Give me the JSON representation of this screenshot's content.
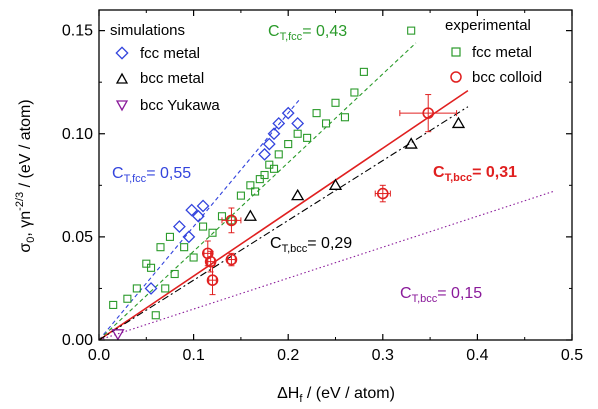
{
  "chart_data": {
    "type": "scatter",
    "xlabel": {
      "main": "ΔH",
      "sub": "f",
      "rest": " / (eV / atom)"
    },
    "ylabel": {
      "a": "σ",
      "a_sub": "0",
      "b": ", γn",
      "b_sup": "-2/3",
      "c": " / (eV / atom)"
    },
    "xlim": [
      0,
      0.5
    ],
    "ylim": [
      0,
      0.16
    ],
    "xticks": [
      0.0,
      0.1,
      0.2,
      0.3,
      0.4,
      0.5
    ],
    "xtick_labels": [
      "0.0",
      "0.1",
      "0.2",
      "0.3",
      "0.4",
      "0.5"
    ],
    "yticks": [
      0.0,
      0.05,
      0.1,
      0.15
    ],
    "ytick_labels": [
      "0.00",
      "0.05",
      "0.10",
      "0.15"
    ],
    "grid": false,
    "legend": {
      "sim_title": "simulations",
      "exp_title": "experimental",
      "entries": {
        "fcc_metal_sim": "fcc metal",
        "bcc_metal_sim": "bcc metal",
        "bcc_yukawa": "bcc Yukawa",
        "fcc_metal_exp": "fcc metal",
        "bcc_colloid": "bcc colloid"
      }
    },
    "colors": {
      "fcc_sim": "#3344dd",
      "bcc_sim": "#000000",
      "yukawa": "#8a1a9a",
      "fcc_exp": "#2a9a2a",
      "colloid": "#e02020"
    },
    "series": {
      "fcc_metal_sim": {
        "marker": "diamond",
        "x": [
          0.055,
          0.085,
          0.095,
          0.098,
          0.105,
          0.11,
          0.175,
          0.18,
          0.185,
          0.19,
          0.2,
          0.21
        ],
        "y": [
          0.025,
          0.055,
          0.05,
          0.063,
          0.06,
          0.065,
          0.09,
          0.095,
          0.1,
          0.105,
          0.11,
          0.105
        ]
      },
      "bcc_metal_sim": {
        "marker": "triangle",
        "x": [
          0.16,
          0.21,
          0.25,
          0.33,
          0.38
        ],
        "y": [
          0.06,
          0.07,
          0.075,
          0.095,
          0.105
        ]
      },
      "bcc_yukawa": {
        "marker": "triangle-down",
        "x": [
          0.02
        ],
        "y": [
          0.003
        ]
      },
      "fcc_metal_exp": {
        "marker": "square",
        "x": [
          0.015,
          0.03,
          0.04,
          0.05,
          0.055,
          0.06,
          0.065,
          0.07,
          0.075,
          0.08,
          0.09,
          0.1,
          0.11,
          0.12,
          0.13,
          0.14,
          0.15,
          0.16,
          0.165,
          0.17,
          0.175,
          0.18,
          0.185,
          0.19,
          0.2,
          0.21,
          0.22,
          0.23,
          0.24,
          0.25,
          0.26,
          0.27,
          0.28,
          0.33
        ],
        "y": [
          0.017,
          0.02,
          0.025,
          0.037,
          0.035,
          0.012,
          0.045,
          0.025,
          0.05,
          0.032,
          0.045,
          0.04,
          0.055,
          0.052,
          0.06,
          0.058,
          0.07,
          0.075,
          0.072,
          0.078,
          0.08,
          0.085,
          0.083,
          0.09,
          0.095,
          0.1,
          0.098,
          0.11,
          0.105,
          0.115,
          0.108,
          0.12,
          0.13,
          0.15
        ]
      },
      "bcc_colloid": {
        "marker": "circle",
        "x": [
          0.115,
          0.118,
          0.12,
          0.14,
          0.14,
          0.3,
          0.348
        ],
        "y": [
          0.042,
          0.038,
          0.029,
          0.058,
          0.039,
          0.071,
          0.11
        ],
        "xerr": [
          0.004,
          0.004,
          0.004,
          0.01,
          0.004,
          0.008,
          0.03
        ],
        "yerr": [
          0.006,
          0.005,
          0.007,
          0.006,
          0.003,
          0.004,
          0.009
        ]
      }
    },
    "fits": {
      "fcc_sim": {
        "slope": 0.55,
        "x_end": 0.213,
        "style": "dashed",
        "label": "C",
        "label_sub": "T,fcc",
        "label_val": "= 0,55"
      },
      "fcc_exp": {
        "slope": 0.43,
        "x_end": 0.335,
        "style": "dashed",
        "label": "C",
        "label_sub": "T,fcc",
        "label_val": "= 0,43"
      },
      "bcc_colloid": {
        "slope": 0.31,
        "x_end": 0.39,
        "style": "solid",
        "label": "C",
        "label_sub": "T,bcc",
        "label_val": "= 0,31"
      },
      "bcc_sim": {
        "slope": 0.29,
        "x_end": 0.39,
        "style": "dashdot",
        "label": "C",
        "label_sub": "T,bcc",
        "label_val": "= 0,29"
      },
      "yukawa": {
        "slope": 0.15,
        "x_end": 0.48,
        "style": "dotted",
        "label": "C",
        "label_sub": "T,bcc",
        "label_val": "= 0,15"
      }
    }
  }
}
